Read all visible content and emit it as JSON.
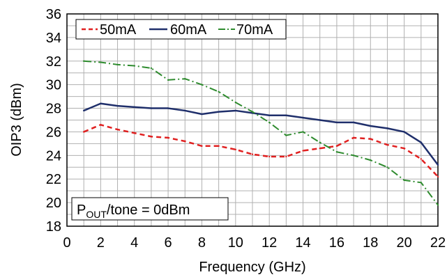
{
  "chart_data": {
    "type": "line",
    "xlabel": "Frequency (GHz)",
    "ylabel": "OIP3 (dBm)",
    "xlim": [
      0,
      22
    ],
    "ylim": [
      18,
      36
    ],
    "xticks": [
      0,
      2,
      4,
      6,
      8,
      10,
      12,
      14,
      16,
      18,
      20,
      22
    ],
    "yticks": [
      18,
      20,
      22,
      24,
      26,
      28,
      30,
      32,
      34,
      36
    ],
    "grid": true,
    "legend_position": "top-left",
    "x": [
      1,
      2,
      3,
      4,
      5,
      6,
      7,
      8,
      9,
      10,
      11,
      12,
      13,
      14,
      15,
      16,
      17,
      18,
      19,
      20,
      21,
      22
    ],
    "series": [
      {
        "name": "50mA",
        "color": "#e02020",
        "style": "dashed",
        "values": [
          26.0,
          26.6,
          26.2,
          25.9,
          25.6,
          25.5,
          25.2,
          24.8,
          24.8,
          24.5,
          24.1,
          23.9,
          23.9,
          24.4,
          24.6,
          24.8,
          25.5,
          25.4,
          24.9,
          24.6,
          23.7,
          22.2
        ]
      },
      {
        "name": "60mA",
        "color": "#1f2f6b",
        "style": "solid",
        "values": [
          27.8,
          28.4,
          28.2,
          28.1,
          28.0,
          28.0,
          27.8,
          27.5,
          27.7,
          27.8,
          27.6,
          27.4,
          27.4,
          27.2,
          27.0,
          26.8,
          26.8,
          26.5,
          26.3,
          26.0,
          25.1,
          23.2
        ]
      },
      {
        "name": "70mA",
        "color": "#2e8b2e",
        "style": "dash-dot",
        "values": [
          32.0,
          31.9,
          31.7,
          31.6,
          31.4,
          30.4,
          30.5,
          30.0,
          29.4,
          28.5,
          27.7,
          26.8,
          25.7,
          26.0,
          25.1,
          24.3,
          24.0,
          23.6,
          23.0,
          21.9,
          21.7,
          19.8
        ]
      }
    ],
    "annotation": {
      "prefix": "P",
      "subscript": "OUT",
      "suffix": "/tone = 0dBm"
    }
  }
}
